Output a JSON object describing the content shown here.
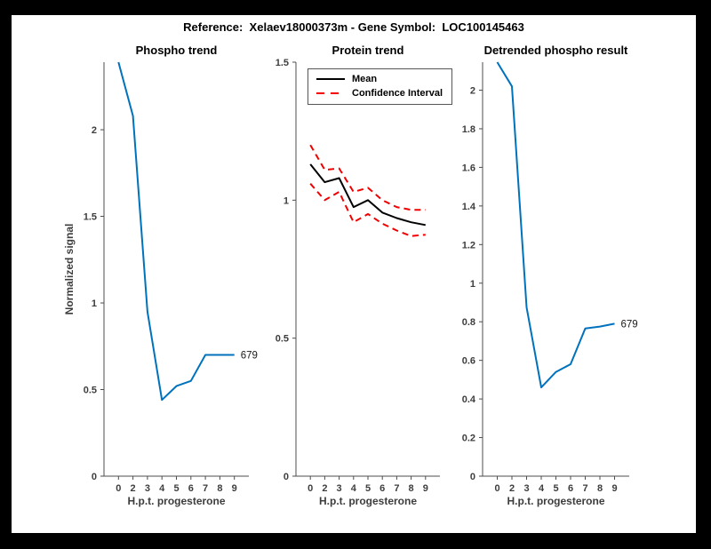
{
  "window": {
    "frame_color": "#000000",
    "canvas_color": "#ffffff"
  },
  "figure_title": "Reference:  Xelaev18000373m - Gene Symbol:  LOC100145463",
  "palette": {
    "signal_line": "#0072bd",
    "mean_line": "#000000",
    "confidence_line": "#f20000",
    "axis": "#4d4d4d",
    "tick_text": "#3d3d3d"
  },
  "chart_data": [
    {
      "type": "line",
      "title": "Phospho trend",
      "xlabel": "H.p.t. progesterone",
      "ylabel": "Normalized signal",
      "x_tick_labels": [
        "0",
        "2",
        "3",
        "4",
        "5",
        "6",
        "7",
        "8",
        "9"
      ],
      "y_ticks": [
        0,
        0.5,
        1,
        1.5,
        2
      ],
      "y_tick_labels": [
        "0",
        "0.5",
        "1",
        "1.5",
        "2"
      ],
      "ylim": [
        0,
        2.39
      ],
      "grid": false,
      "series": [
        {
          "name": "phospho signal",
          "color_key": "signal_line",
          "style": "solid",
          "values": [
            2.39,
            2.08,
            0.95,
            0.44,
            0.52,
            0.55,
            0.7,
            0.7,
            0.7
          ],
          "end_label": "679"
        }
      ]
    },
    {
      "type": "line",
      "title": "Protein trend",
      "xlabel": "H.p.t. progesterone",
      "ylabel": "",
      "x_tick_labels": [
        "0",
        "2",
        "3",
        "4",
        "5",
        "6",
        "7",
        "8",
        "9"
      ],
      "y_ticks": [
        0,
        0.5,
        1,
        1.5
      ],
      "y_tick_labels": [
        "0",
        "0.5",
        "1",
        "1.5"
      ],
      "ylim": [
        0,
        1.5
      ],
      "grid": false,
      "legend_position": "north-inside",
      "legend_entries": [
        {
          "label": "Mean",
          "color_key": "mean_line",
          "style": "solid"
        },
        {
          "label": "Confidence Interval",
          "color_key": "confidence_line",
          "style": "dashed"
        }
      ],
      "series": [
        {
          "name": "mean",
          "color_key": "mean_line",
          "style": "solid",
          "values": [
            1.13,
            1.065,
            1.08,
            0.975,
            1.0,
            0.955,
            0.935,
            0.92,
            0.91
          ]
        },
        {
          "name": "confidence upper",
          "color_key": "confidence_line",
          "style": "dashed",
          "values": [
            1.2,
            1.11,
            1.115,
            1.03,
            1.045,
            1.0,
            0.975,
            0.965,
            0.965
          ]
        },
        {
          "name": "confidence lower",
          "color_key": "confidence_line",
          "style": "dashed",
          "values": [
            1.06,
            1.0,
            1.03,
            0.92,
            0.95,
            0.915,
            0.89,
            0.87,
            0.875
          ]
        }
      ]
    },
    {
      "type": "line",
      "title": "Detrended phospho result",
      "xlabel": "H.p.t. progesterone",
      "ylabel": "",
      "x_tick_labels": [
        "0",
        "2",
        "3",
        "4",
        "5",
        "6",
        "7",
        "8",
        "9"
      ],
      "y_ticks": [
        0,
        0.2,
        0.4,
        0.6,
        0.8,
        1,
        1.2,
        1.4,
        1.6,
        1.8,
        2
      ],
      "y_tick_labels": [
        "0",
        "0.2",
        "0.4",
        "0.6",
        "0.8",
        "1",
        "1.2",
        "1.4",
        "1.6",
        "1.8",
        "2"
      ],
      "ylim": [
        0,
        2.145
      ],
      "grid": false,
      "series": [
        {
          "name": "detrended signal",
          "color_key": "signal_line",
          "style": "solid",
          "values": [
            2.145,
            2.02,
            0.875,
            0.46,
            0.54,
            0.58,
            0.765,
            0.775,
            0.79
          ],
          "end_label": "679"
        }
      ]
    }
  ]
}
